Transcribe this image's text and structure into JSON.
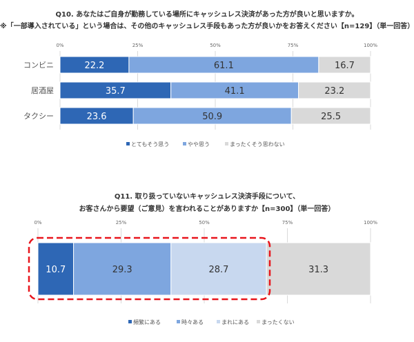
{
  "chart_data": [
    {
      "type": "bar",
      "orientation": "horizontal",
      "stacked": true,
      "title": "Q10. あなたはご自身が勤務している場所にキャッシュレス決済があった方が良いと思いますか。",
      "subtitle": "※「一部導入されている」という場合は、その他のキャッシュレス手段もあった方が良いかをお答えください【n=129】（単一回答）",
      "categories": [
        "コンビニ",
        "居酒屋",
        "タクシー"
      ],
      "series": [
        {
          "name": "とてもそう思う",
          "values": [
            22.2,
            35.7,
            23.6
          ],
          "color": "#2e67b5",
          "label_color": "#ffffff"
        },
        {
          "name": "やや思う",
          "values": [
            61.1,
            41.1,
            50.9
          ],
          "color": "#7ea6df",
          "label_color": "#333333"
        },
        {
          "name": "まったくそう思わない",
          "values": [
            16.7,
            23.2,
            25.5
          ],
          "color": "#d9d9d9",
          "label_color": "#333333"
        }
      ],
      "xlim": [
        0,
        100
      ],
      "tick_labels": [
        "0%",
        "25%",
        "50%",
        "75%",
        "100%"
      ],
      "legend_position": "bottom"
    },
    {
      "type": "bar",
      "orientation": "horizontal",
      "stacked": true,
      "title": "Q11. 取り扱っていないキャッシュレス決済手段について、",
      "subtitle": "お客さんから要望（ご意見）を言われることがありますか【n=300】（単一回答）",
      "categories": [
        ""
      ],
      "series": [
        {
          "name": "頻繁にある",
          "values": [
            10.7
          ],
          "color": "#2e67b5",
          "label_color": "#ffffff"
        },
        {
          "name": "時々ある",
          "values": [
            29.3
          ],
          "color": "#7ea6df",
          "label_color": "#333333"
        },
        {
          "name": "まれにある",
          "values": [
            28.7
          ],
          "color": "#c8d8ef",
          "label_color": "#333333"
        },
        {
          "name": "まったくない",
          "values": [
            31.3
          ],
          "color": "#d9d9d9",
          "label_color": "#333333"
        }
      ],
      "xlim": [
        0,
        100
      ],
      "tick_labels": [
        "0%",
        "25%",
        "50%",
        "75%",
        "100%"
      ],
      "legend_position": "bottom",
      "highlight_color": "#e8141b"
    }
  ]
}
